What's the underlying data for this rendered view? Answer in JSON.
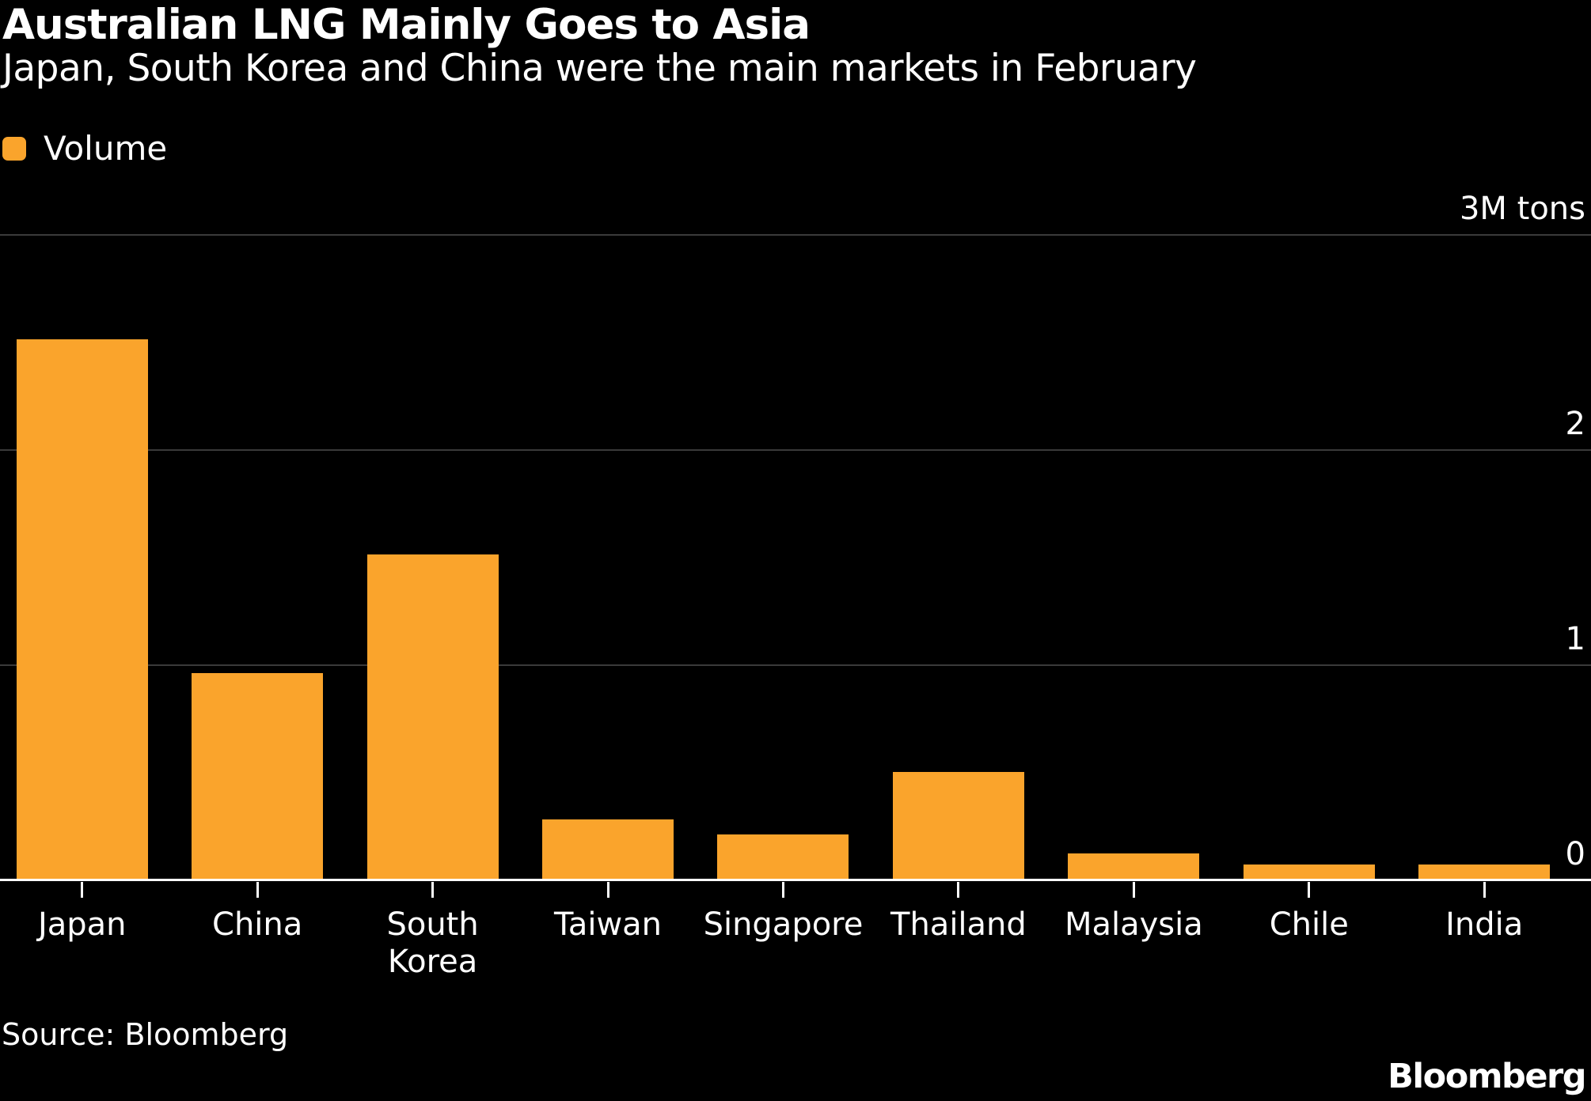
{
  "header": {
    "title": "Australian LNG Mainly Goes to Asia",
    "subtitle": "Japan, South Korea and China were the main markets in February"
  },
  "legend": {
    "label": "Volume",
    "swatch_color": "#FAA42C"
  },
  "chart_data": {
    "type": "bar",
    "title": "Australian LNG Mainly Goes to Asia",
    "subtitle": "Japan, South Korea and China were the main markets in February",
    "series_name": "Volume",
    "categories": [
      "Japan",
      "China",
      "South Korea",
      "Taiwan",
      "Singapore",
      "Thailand",
      "Malaysia",
      "Chile",
      "India"
    ],
    "values": [
      2.51,
      0.96,
      1.51,
      0.28,
      0.21,
      0.5,
      0.12,
      0.07,
      0.07
    ],
    "unit": "M tons",
    "xlabel": "",
    "ylabel": "",
    "ylim": [
      0,
      3
    ],
    "yticks": [
      {
        "value": 0,
        "label": "0"
      },
      {
        "value": 1,
        "label": "1"
      },
      {
        "value": 2,
        "label": "2"
      },
      {
        "value": 3,
        "label": "3M tons"
      }
    ],
    "grid": "horizontal",
    "legend_position": "top-left",
    "bar_color": "#FAA42C",
    "background_color": "#000000",
    "gridline_color": "#3a3a3a"
  },
  "footer": {
    "source": "Source: Bloomberg",
    "logo": "Bloomberg"
  }
}
